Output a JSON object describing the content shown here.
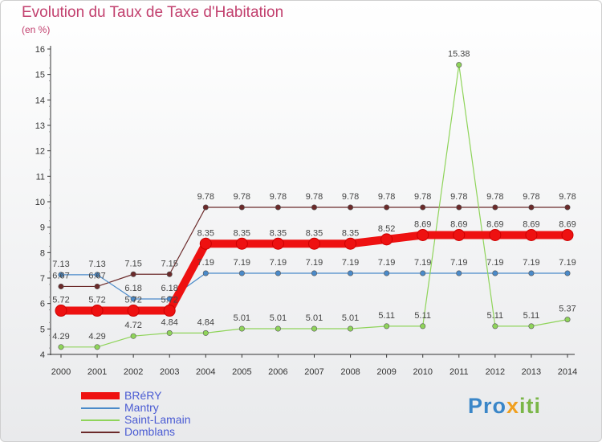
{
  "title": "Evolution du Taux de Taxe d'Habitation",
  "subtitle": "(en %)",
  "logo": {
    "part1": "Pro",
    "part2": "x",
    "part3": "iti"
  },
  "chart_data": {
    "type": "line",
    "x": [
      2000,
      2001,
      2002,
      2003,
      2004,
      2005,
      2006,
      2007,
      2008,
      2009,
      2010,
      2011,
      2012,
      2013,
      2014
    ],
    "ylim": [
      4,
      16
    ],
    "yticks": [
      4,
      5,
      6,
      7,
      8,
      9,
      10,
      11,
      12,
      13,
      14,
      15,
      16
    ],
    "grid": false,
    "legend_position": "bottom-left",
    "series": [
      {
        "name": "Domblans",
        "color": "#6b2a2a",
        "values": [
          6.67,
          6.67,
          7.15,
          7.15,
          9.78,
          9.78,
          9.78,
          9.78,
          9.78,
          9.78,
          9.78,
          9.78,
          9.78,
          9.78,
          9.78
        ],
        "labels": [
          "6.67",
          "6.67",
          "7.15",
          "7.15",
          "9.78",
          "9.78",
          "9.78",
          "9.78",
          "9.78",
          "9.78",
          "9.78",
          "9.78",
          "9.78",
          "9.78",
          "9.78"
        ]
      },
      {
        "name": "Mantry",
        "color": "#4a8ac9",
        "values": [
          7.13,
          7.13,
          6.18,
          6.18,
          7.19,
          7.19,
          7.19,
          7.19,
          7.19,
          7.19,
          7.19,
          7.19,
          7.19,
          7.19,
          7.19
        ],
        "labels": [
          "7.13",
          "7.13",
          "6.18",
          "6.18",
          "7.19",
          "7.19",
          "7.19",
          "7.19",
          "7.19",
          "7.19",
          "7.19",
          "7.19",
          "7.19",
          "7.19",
          "7.19"
        ]
      },
      {
        "name": "Saint-Lamain",
        "color": "#8fd45a",
        "values": [
          4.29,
          4.29,
          4.72,
          4.84,
          4.84,
          5.01,
          5.01,
          5.01,
          5.01,
          5.11,
          5.11,
          15.38,
          5.11,
          5.11,
          5.37
        ],
        "labels": [
          "4.29",
          "4.29",
          "4.72",
          "4.84",
          "4.84",
          "5.01",
          "5.01",
          "5.01",
          "5.01",
          "5.11",
          "5.11",
          "15.38",
          "5.11",
          "5.11",
          "5.37"
        ]
      },
      {
        "name": "BRéRY",
        "color": "#ee1111",
        "values": [
          5.72,
          5.72,
          5.72,
          5.72,
          8.35,
          8.35,
          8.35,
          8.35,
          8.35,
          8.52,
          8.69,
          8.69,
          8.69,
          8.69,
          8.69
        ],
        "labels": [
          "5.72",
          "5.72",
          "5.72",
          "5.72",
          "8.35",
          "8.35",
          "8.35",
          "8.35",
          "8.35",
          "8.52",
          "8.69",
          "8.69",
          "8.69",
          "8.69",
          "8.69"
        ]
      }
    ],
    "legend": [
      "BRéRY",
      "Mantry",
      "Saint-Lamain",
      "Domblans"
    ]
  }
}
